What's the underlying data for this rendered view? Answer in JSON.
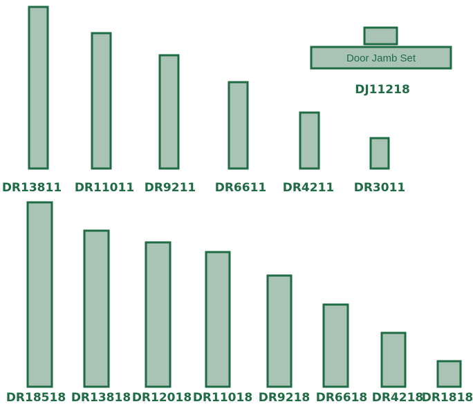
{
  "colors": {
    "fill": "#a9c4b4",
    "stroke": "#1f6b44",
    "text": "#1f6b44"
  },
  "rows": [
    {
      "name": "row-11",
      "pieces": [
        {
          "code": "DR13811"
        },
        {
          "code": "DR11011"
        },
        {
          "code": "DR9211"
        },
        {
          "code": "DR6611"
        },
        {
          "code": "DR4211"
        },
        {
          "code": "DR3011"
        }
      ]
    },
    {
      "name": "row-18",
      "pieces": [
        {
          "code": "DR18518"
        },
        {
          "code": "DR13818"
        },
        {
          "code": "DR12018"
        },
        {
          "code": "DR11018"
        },
        {
          "code": "DR9218"
        },
        {
          "code": "DR6618"
        },
        {
          "code": "DR4218"
        },
        {
          "code": "DR1818"
        }
      ]
    }
  ],
  "jamb_set": {
    "label": "Door Jamb Set",
    "code": "DJ11218"
  }
}
